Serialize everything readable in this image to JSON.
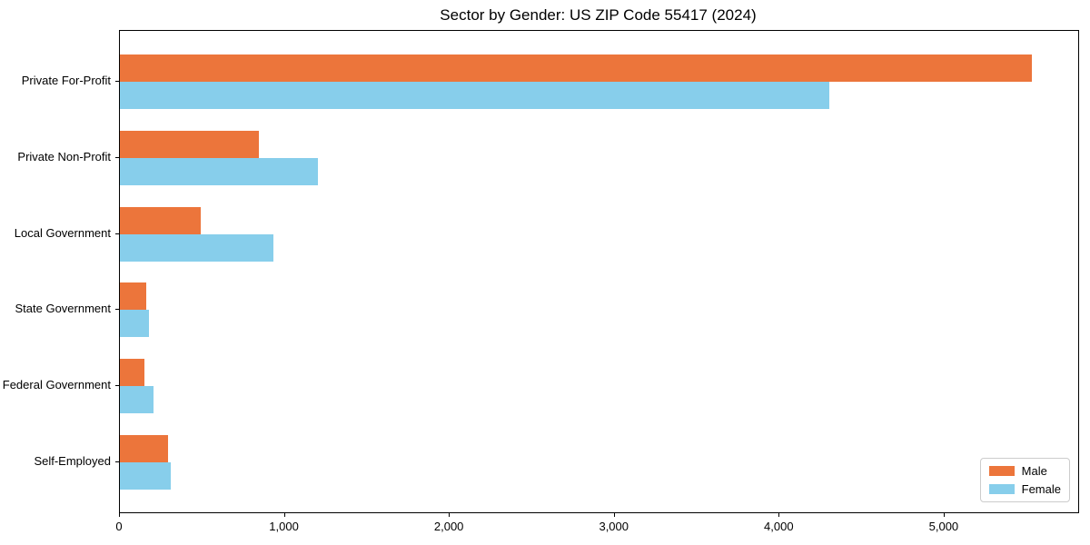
{
  "title": "Sector by Gender: US ZIP Code 55417 (2024)",
  "chart_data": {
    "type": "bar",
    "orientation": "horizontal",
    "title": "Sector by Gender: US ZIP Code 55417 (2024)",
    "categories": [
      "Private For-Profit",
      "Private Non-Profit",
      "Local Government",
      "State Government",
      "Federal Government",
      "Self-Employed"
    ],
    "series": [
      {
        "name": "Male",
        "color": "#EC753B",
        "values": [
          5530,
          840,
          490,
          160,
          150,
          290
        ]
      },
      {
        "name": "Female",
        "color": "#87CEEB",
        "values": [
          4300,
          1200,
          930,
          175,
          205,
          310
        ]
      }
    ],
    "xlabel": "",
    "ylabel": "",
    "xlim": [
      0,
      5810
    ],
    "xticks": [
      0,
      1000,
      2000,
      3000,
      4000,
      5000
    ],
    "xtick_labels": [
      "0",
      "1,000",
      "2,000",
      "3,000",
      "4,000",
      "5,000"
    ],
    "grid": false,
    "legend_position": "lower right",
    "spine_color": "#000000",
    "legend_border_color": "#cccccc"
  },
  "legend": {
    "male_label": "Male",
    "female_label": "Female"
  }
}
